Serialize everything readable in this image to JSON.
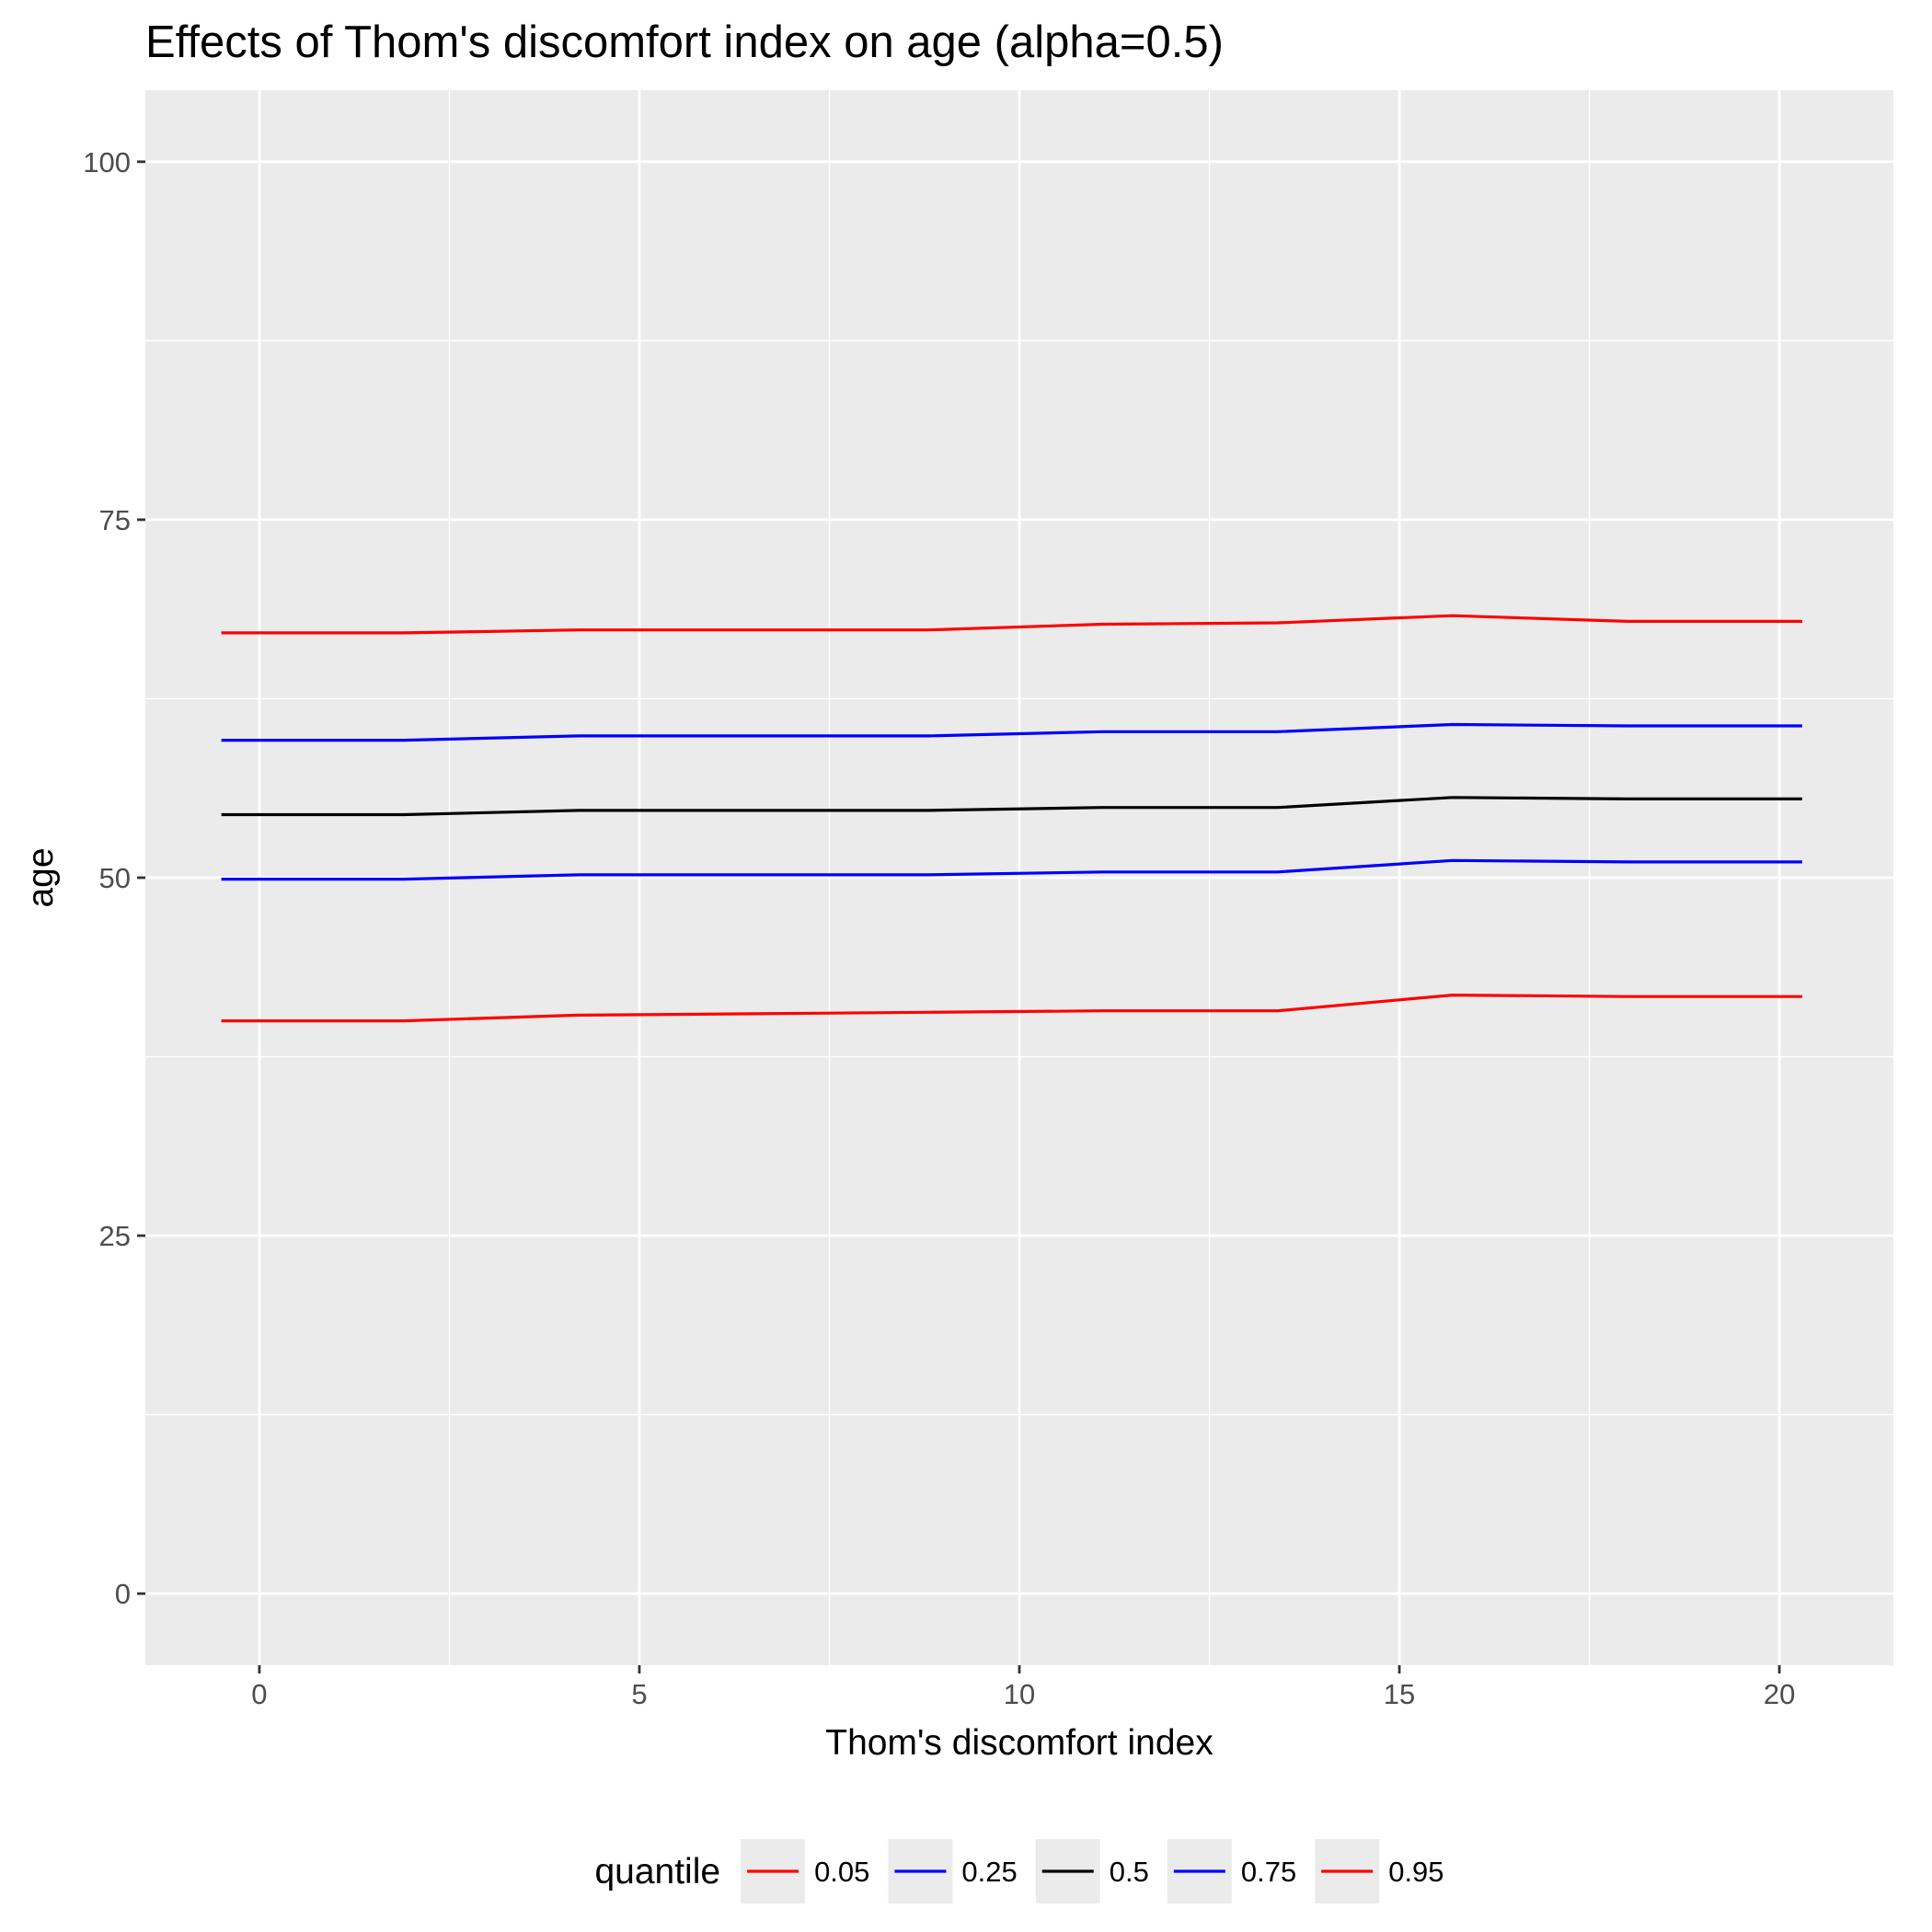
{
  "chart_data": {
    "type": "line",
    "title": "Effects of Thom's discomfort index on age (alpha=0.5)",
    "xlabel": "Thom's discomfort index",
    "ylabel": "age",
    "xlim": [
      -1.5,
      21.5
    ],
    "ylim": [
      -5,
      105
    ],
    "x_ticks": [
      0,
      5,
      10,
      15,
      20
    ],
    "y_ticks": [
      0,
      25,
      50,
      75,
      100
    ],
    "grid": true,
    "legend_position": "bottom",
    "legend_title": "quantile",
    "x": [
      -0.5,
      1.9,
      4.2,
      6.5,
      8.8,
      11.1,
      13.4,
      15.7,
      18.0,
      20.3
    ],
    "series": [
      {
        "name": "0.05",
        "color": "#ff0000",
        "values": [
          40.0,
          40.0,
          40.4,
          40.5,
          40.6,
          40.7,
          40.7,
          41.8,
          41.7,
          41.7
        ]
      },
      {
        "name": "0.25",
        "color": "#0000ff",
        "values": [
          49.9,
          49.9,
          50.2,
          50.2,
          50.2,
          50.4,
          50.4,
          51.2,
          51.1,
          51.1
        ]
      },
      {
        "name": "0.5",
        "color": "#000000",
        "values": [
          54.4,
          54.4,
          54.7,
          54.7,
          54.7,
          54.9,
          54.9,
          55.6,
          55.5,
          55.5
        ]
      },
      {
        "name": "0.75",
        "color": "#0000ff",
        "values": [
          59.6,
          59.6,
          59.9,
          59.9,
          59.9,
          60.2,
          60.2,
          60.7,
          60.6,
          60.6
        ]
      },
      {
        "name": "0.95",
        "color": "#ff0000",
        "values": [
          67.1,
          67.1,
          67.3,
          67.3,
          67.3,
          67.7,
          67.8,
          68.3,
          67.9,
          67.9
        ]
      }
    ]
  }
}
